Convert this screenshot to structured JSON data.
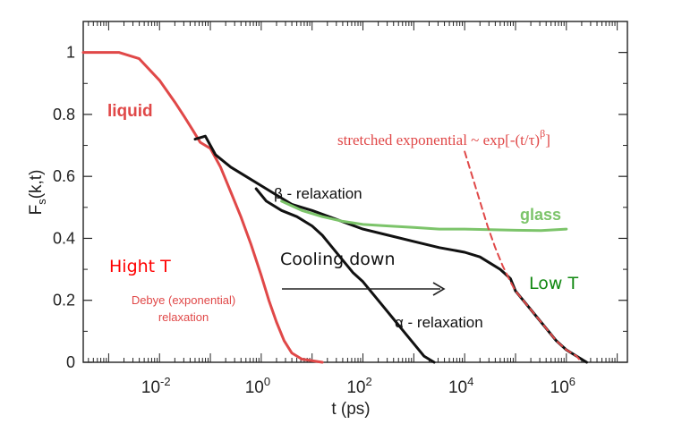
{
  "chart_data": {
    "type": "line",
    "x_scale": "log",
    "xlim_log10": [
      -3.5,
      7.2
    ],
    "ylim": [
      0,
      1.1
    ],
    "grid": false,
    "xlabel": "t (ps)",
    "ylabel_main": "F",
    "ylabel_sub": "s",
    "ylabel_tail": "(k,t)",
    "x_ticks": [
      {
        "exp": "-2"
      },
      {
        "exp": "0"
      },
      {
        "exp": "2"
      },
      {
        "exp": "4"
      },
      {
        "exp": "6"
      }
    ],
    "x_tick_values": [
      -2,
      0,
      2,
      4,
      6
    ],
    "y_ticks": [
      "0",
      "0.2",
      "0.4",
      "0.6",
      "0.8",
      "1"
    ],
    "y_tick_values": [
      0,
      0.2,
      0.4,
      0.6,
      0.8,
      1
    ],
    "colors": {
      "liquid": "#e04848",
      "black": "#111111",
      "glass": "#7cc46a",
      "stretched": "#e04848",
      "high_t": "#ff0000",
      "low_t": "#118811"
    },
    "series": [
      {
        "key": "liquid",
        "points": [
          [
            -3.5,
            1.0
          ],
          [
            -2.8,
            1.0
          ],
          [
            -2.4,
            0.98
          ],
          [
            -2.0,
            0.91
          ],
          [
            -1.7,
            0.84
          ],
          [
            -1.5,
            0.79
          ],
          [
            -1.35,
            0.75
          ],
          [
            -1.2,
            0.71
          ],
          [
            -1.0,
            0.69
          ],
          [
            -0.8,
            0.63
          ],
          [
            -0.6,
            0.55
          ],
          [
            -0.4,
            0.47
          ],
          [
            -0.2,
            0.38
          ],
          [
            0.0,
            0.28
          ],
          [
            0.15,
            0.2
          ],
          [
            0.3,
            0.13
          ],
          [
            0.45,
            0.07
          ],
          [
            0.6,
            0.03
          ],
          [
            0.8,
            0.01
          ],
          [
            1.2,
            0.0
          ]
        ]
      },
      {
        "key": "black_upper",
        "points": [
          [
            -1.3,
            0.72
          ],
          [
            -1.1,
            0.73
          ],
          [
            -0.9,
            0.67
          ],
          [
            -0.6,
            0.63
          ],
          [
            -0.3,
            0.6
          ],
          [
            0.0,
            0.57
          ],
          [
            0.3,
            0.54
          ],
          [
            0.6,
            0.51
          ],
          [
            1.0,
            0.49
          ],
          [
            1.5,
            0.46
          ],
          [
            2.0,
            0.43
          ],
          [
            2.5,
            0.41
          ],
          [
            3.0,
            0.39
          ],
          [
            3.5,
            0.37
          ],
          [
            4.0,
            0.355
          ],
          [
            4.3,
            0.34
          ],
          [
            4.5,
            0.32
          ],
          [
            4.7,
            0.3
          ],
          [
            4.9,
            0.27
          ],
          [
            5.0,
            0.23
          ],
          [
            5.2,
            0.19
          ],
          [
            5.4,
            0.15
          ],
          [
            5.6,
            0.11
          ],
          [
            5.8,
            0.07
          ],
          [
            6.0,
            0.04
          ],
          [
            6.2,
            0.02
          ],
          [
            6.4,
            0.0
          ]
        ]
      },
      {
        "key": "black_lower",
        "points": [
          [
            -0.1,
            0.56
          ],
          [
            0.1,
            0.52
          ],
          [
            0.4,
            0.49
          ],
          [
            0.7,
            0.47
          ],
          [
            1.0,
            0.44
          ],
          [
            1.2,
            0.41
          ],
          [
            1.4,
            0.37
          ],
          [
            1.6,
            0.33
          ],
          [
            1.8,
            0.29
          ],
          [
            2.0,
            0.26
          ],
          [
            2.2,
            0.22
          ],
          [
            2.4,
            0.18
          ],
          [
            2.6,
            0.14
          ],
          [
            2.8,
            0.1
          ],
          [
            3.0,
            0.06
          ],
          [
            3.2,
            0.02
          ],
          [
            3.4,
            0.0
          ]
        ]
      },
      {
        "key": "glass",
        "points": [
          [
            0.4,
            0.52
          ],
          [
            0.8,
            0.49
          ],
          [
            1.2,
            0.47
          ],
          [
            1.6,
            0.455
          ],
          [
            2.0,
            0.445
          ],
          [
            2.5,
            0.44
          ],
          [
            3.0,
            0.435
          ],
          [
            3.5,
            0.43
          ],
          [
            4.0,
            0.43
          ],
          [
            4.5,
            0.428
          ],
          [
            5.0,
            0.426
          ],
          [
            5.5,
            0.425
          ],
          [
            6.0,
            0.43
          ]
        ]
      },
      {
        "key": "stretched",
        "dashed": true,
        "points": [
          [
            4.0,
            0.68
          ],
          [
            4.15,
            0.6
          ],
          [
            4.3,
            0.52
          ],
          [
            4.45,
            0.44
          ],
          [
            4.6,
            0.37
          ],
          [
            4.75,
            0.31
          ],
          [
            4.9,
            0.26
          ],
          [
            5.0,
            0.23
          ],
          [
            5.2,
            0.19
          ],
          [
            5.4,
            0.15
          ],
          [
            5.6,
            0.11
          ],
          [
            5.8,
            0.07
          ],
          [
            6.0,
            0.04
          ],
          [
            6.2,
            0.02
          ],
          [
            6.3,
            0.0
          ]
        ]
      }
    ],
    "annotations": {
      "liquid": "liquid",
      "beta": "β - relaxation",
      "glass": "glass",
      "stretched_prefix": "stretched exponential ~ exp[-(t/τ)",
      "stretched_exp": "β",
      "stretched_suffix": "]",
      "high_t": "Hight T",
      "debye_line1": "Debye (exponential)",
      "debye_line2": "relaxation",
      "cooling": "Cooling down",
      "alpha": "α - relaxation",
      "low_t": "Low T"
    }
  }
}
